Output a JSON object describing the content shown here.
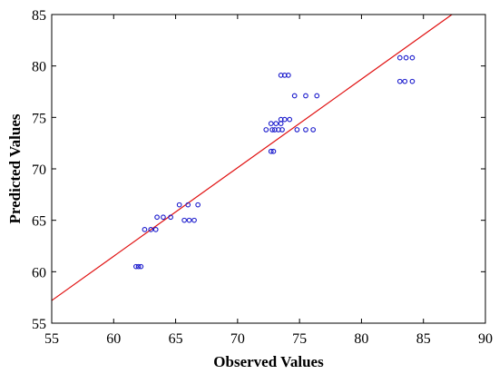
{
  "chart_data": {
    "type": "scatter",
    "title": "",
    "xlabel": "Observed Values",
    "ylabel": "Predicted Values",
    "xlim": [
      55,
      90
    ],
    "ylim": [
      55,
      85
    ],
    "xticks": [
      "55",
      "60",
      "65",
      "70",
      "75",
      "80",
      "85",
      "90"
    ],
    "yticks": [
      "55",
      "60",
      "65",
      "70",
      "75",
      "80",
      "85"
    ],
    "grid": false,
    "legend": "none",
    "colors": {
      "points": "#1a1acc",
      "fit_line": "#e01010",
      "axes": "#000000"
    },
    "fit_line": {
      "from": [
        55,
        57.2
      ],
      "to": [
        87.3,
        85
      ]
    },
    "points": [
      {
        "x": 61.8,
        "y": 60.5
      },
      {
        "x": 62.0,
        "y": 60.5
      },
      {
        "x": 62.2,
        "y": 60.5
      },
      {
        "x": 62.5,
        "y": 64.1
      },
      {
        "x": 63.0,
        "y": 64.1
      },
      {
        "x": 63.4,
        "y": 64.1
      },
      {
        "x": 63.5,
        "y": 65.3
      },
      {
        "x": 64.0,
        "y": 65.3
      },
      {
        "x": 64.6,
        "y": 65.3
      },
      {
        "x": 65.3,
        "y": 66.5
      },
      {
        "x": 66.0,
        "y": 66.5
      },
      {
        "x": 66.8,
        "y": 66.5
      },
      {
        "x": 65.7,
        "y": 65.0
      },
      {
        "x": 66.1,
        "y": 65.0
      },
      {
        "x": 66.5,
        "y": 65.0
      },
      {
        "x": 72.7,
        "y": 71.7
      },
      {
        "x": 72.9,
        "y": 71.7
      },
      {
        "x": 72.3,
        "y": 73.8
      },
      {
        "x": 72.8,
        "y": 73.8
      },
      {
        "x": 73.0,
        "y": 73.8
      },
      {
        "x": 73.3,
        "y": 73.8
      },
      {
        "x": 73.6,
        "y": 73.8
      },
      {
        "x": 72.7,
        "y": 74.4
      },
      {
        "x": 73.1,
        "y": 74.4
      },
      {
        "x": 73.5,
        "y": 74.4
      },
      {
        "x": 73.5,
        "y": 74.8
      },
      {
        "x": 73.8,
        "y": 74.8
      },
      {
        "x": 74.2,
        "y": 74.8
      },
      {
        "x": 74.8,
        "y": 73.8
      },
      {
        "x": 75.5,
        "y": 73.8
      },
      {
        "x": 76.1,
        "y": 73.8
      },
      {
        "x": 74.6,
        "y": 77.1
      },
      {
        "x": 75.5,
        "y": 77.1
      },
      {
        "x": 76.4,
        "y": 77.1
      },
      {
        "x": 73.5,
        "y": 79.1
      },
      {
        "x": 73.8,
        "y": 79.1
      },
      {
        "x": 74.1,
        "y": 79.1
      },
      {
        "x": 83.1,
        "y": 78.5
      },
      {
        "x": 83.5,
        "y": 78.5
      },
      {
        "x": 84.1,
        "y": 78.5
      },
      {
        "x": 83.1,
        "y": 80.8
      },
      {
        "x": 83.6,
        "y": 80.8
      },
      {
        "x": 84.1,
        "y": 80.8
      }
    ]
  }
}
